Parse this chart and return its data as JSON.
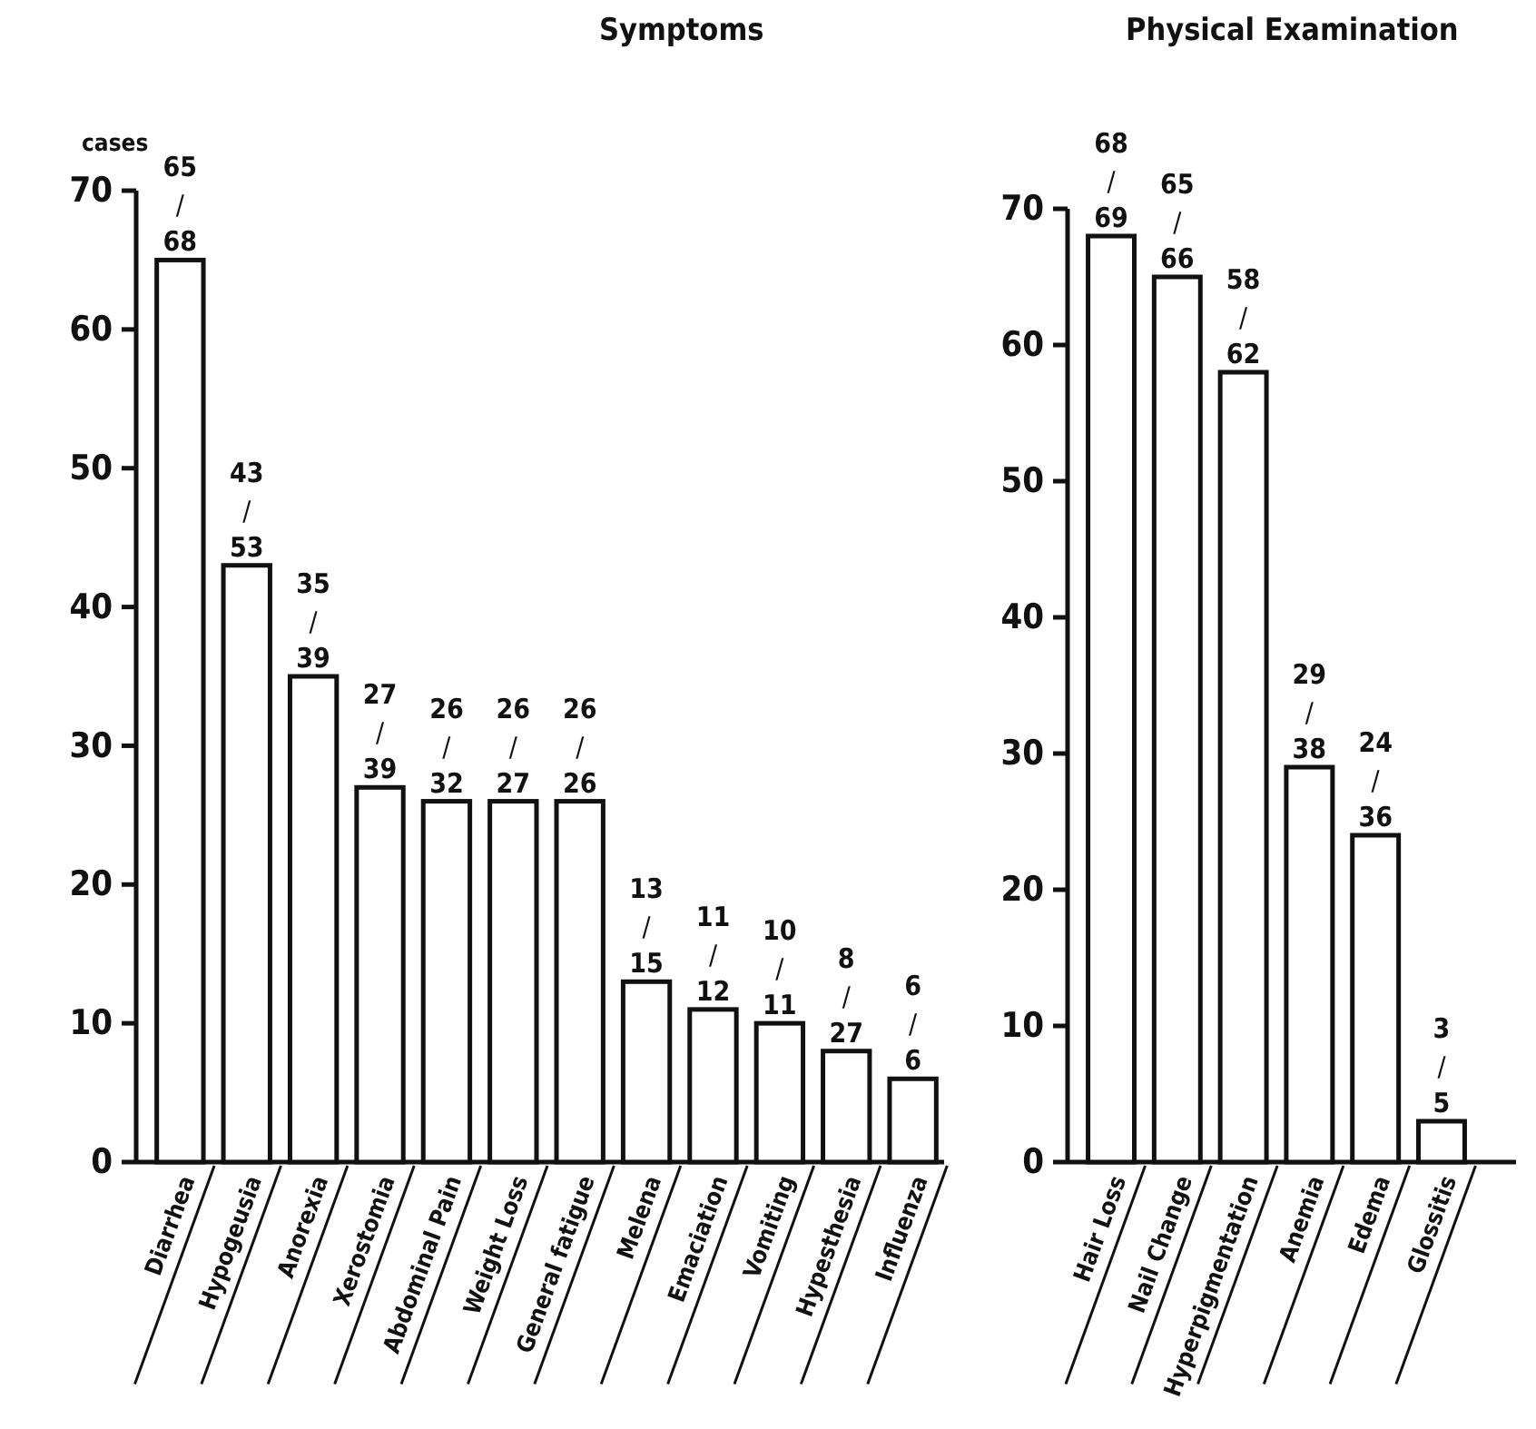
{
  "chart_data": [
    {
      "type": "bar",
      "title": "Symptoms",
      "ylabel": "cases",
      "categories": [
        "Diarrhea",
        "Hypogeusia",
        "Anorexia",
        "Xerostomia",
        "Abdominal Pain",
        "Weight Loss",
        "General fatigue",
        "Melena",
        "Emaciation",
        "Vomiting",
        "Hypesthesia",
        "Influenza"
      ],
      "values": [
        65,
        43,
        35,
        27,
        26,
        26,
        26,
        13,
        11,
        10,
        8,
        6
      ],
      "color": "#ffffff",
      "ylim": [
        0,
        70
      ],
      "yticks": [
        0,
        10,
        20,
        30,
        40,
        50,
        60,
        70
      ],
      "grid": false,
      "annotations": [
        {
          "text": "65/68",
          "x": "Diarrhea",
          "y": 65
        },
        {
          "text": "43/53",
          "x": "Hypogeusia",
          "y": 43
        },
        {
          "text": "35/39",
          "x": "Anorexia",
          "y": 35
        },
        {
          "text": "27/39",
          "x": "Xerostomia",
          "y": 27
        },
        {
          "text": "26/32",
          "x": "Abdominal Pain",
          "y": 26
        },
        {
          "text": "26/27",
          "x": "Weight Loss",
          "y": 26
        },
        {
          "text": "26/26",
          "x": "General fatigue",
          "y": 26
        },
        {
          "text": "13/15",
          "x": "Melena",
          "y": 13
        },
        {
          "text": "11/12",
          "x": "Emaciation",
          "y": 11
        },
        {
          "text": "10/11",
          "x": "Vomiting",
          "y": 10
        },
        {
          "text": "8/27",
          "x": "Hypesthesia",
          "y": 8
        },
        {
          "text": "6/6",
          "x": "Influenza",
          "y": 6
        }
      ]
    },
    {
      "type": "bar",
      "title": "Physical Examination",
      "categories": [
        "Hair Loss",
        "Nail Change",
        "Hyperpigmentation",
        "Anemia",
        "Edema",
        "Glossitis"
      ],
      "values": [
        68,
        65,
        58,
        29,
        24,
        3
      ],
      "color": "#ffffff",
      "ylim": [
        0,
        70
      ],
      "yticks": [
        0,
        10,
        20,
        30,
        40,
        50,
        60,
        70
      ],
      "grid": false,
      "annotations": [
        {
          "text": "68/69",
          "x": "Hair Loss",
          "y": 68
        },
        {
          "text": "65/66",
          "x": "Nail Change",
          "y": 65
        },
        {
          "text": "58/62",
          "x": "Hyperpigmentation",
          "y": 58
        },
        {
          "text": "29/38",
          "x": "Anemia",
          "y": 29
        },
        {
          "text": "24/36",
          "x": "Edema",
          "y": 24
        },
        {
          "text": "3/5",
          "x": "Glossitis",
          "y": 3
        }
      ]
    }
  ]
}
